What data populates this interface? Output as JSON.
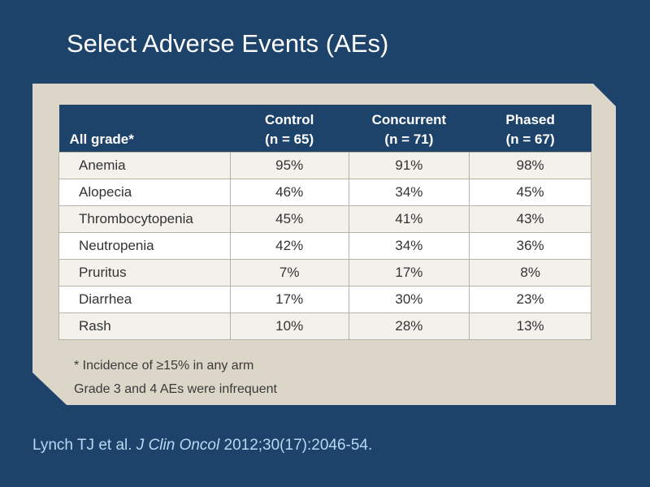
{
  "title": "Select Adverse Events (AEs)",
  "table": {
    "header": {
      "row_label": "All grade*",
      "columns": [
        {
          "name": "Control",
          "n": "(n = 65)"
        },
        {
          "name": "Concurrent",
          "n": "(n = 71)"
        },
        {
          "name": "Phased",
          "n": "(n = 67)"
        }
      ]
    },
    "rows": [
      {
        "event": "Anemia",
        "values": [
          "95%",
          "91%",
          "98%"
        ]
      },
      {
        "event": "Alopecia",
        "values": [
          "46%",
          "34%",
          "45%"
        ]
      },
      {
        "event": "Thrombocytopenia",
        "values": [
          "45%",
          "41%",
          "43%"
        ]
      },
      {
        "event": "Neutropenia",
        "values": [
          "42%",
          "34%",
          "36%"
        ]
      },
      {
        "event": "Pruritus",
        "values": [
          "7%",
          "17%",
          "8%"
        ]
      },
      {
        "event": "Diarrhea",
        "values": [
          "17%",
          "30%",
          "23%"
        ]
      },
      {
        "event": "Rash",
        "values": [
          "10%",
          "28%",
          "13%"
        ]
      }
    ]
  },
  "footnotes": [
    "* Incidence of ≥15% in any arm",
    "Grade 3 and 4 AEs were infrequent"
  ],
  "citation": {
    "authors": "Lynch TJ et al.",
    "journal": "J Clin Oncol",
    "details": "2012;30(17):2046-54."
  },
  "colors": {
    "background": "#1e436b",
    "panel": "#dbd6c8",
    "header_row": "#1e436b",
    "citation_text": "#b7d8f0"
  }
}
